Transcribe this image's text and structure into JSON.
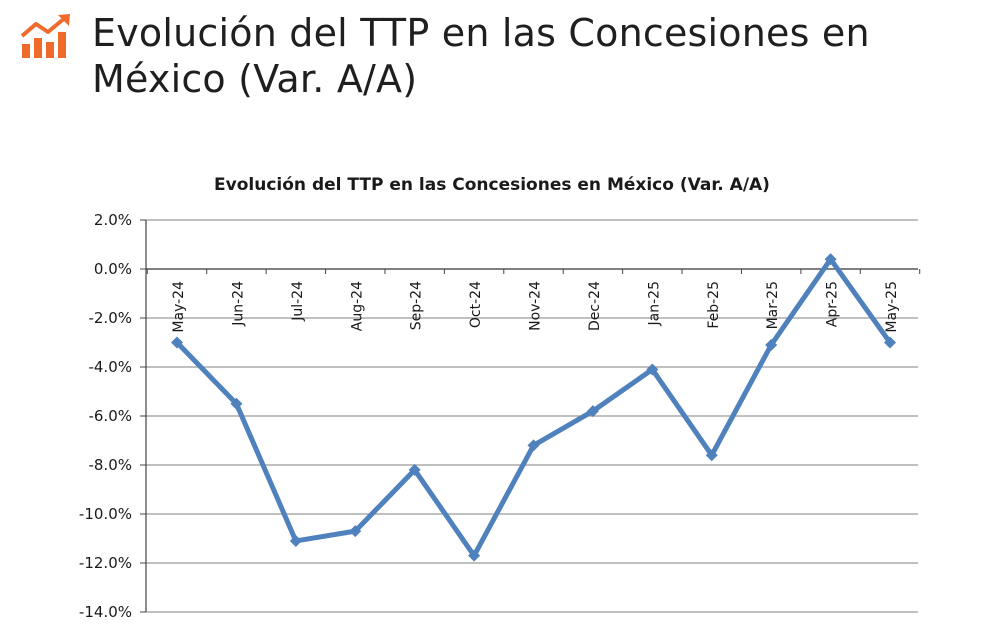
{
  "page": {
    "title": "Evolución del TTP en las Concesiones en México (Var. A/A)"
  },
  "colors": {
    "icon": "#F06A2C",
    "line": "#4F81BD",
    "grid": "#9A9A9A"
  },
  "icon_name": "bar-chart-trend-icon",
  "chart_data": {
    "type": "line",
    "title": "Evolución del TTP  en las Concesiones en México (Var. A/A)",
    "xlabel": "",
    "ylabel": "",
    "categories": [
      "May-24",
      "Jun-24",
      "Jul-24",
      "Aug-24",
      "Sep-24",
      "Oct-24",
      "Nov-24",
      "Dec-24",
      "Jan-25",
      "Feb-25",
      "Mar-25",
      "Apr-25",
      "May-25"
    ],
    "series": [
      {
        "values": [
          -3.0,
          -5.5,
          -11.1,
          -10.7,
          -8.2,
          -11.7,
          -7.2,
          -5.8,
          -4.1,
          -7.6,
          -3.1,
          0.4,
          -3.0
        ]
      }
    ],
    "ylim": [
      -14,
      2
    ],
    "yticks": [
      2,
      0,
      -2,
      -4,
      -6,
      -8,
      -10,
      -12,
      -14
    ],
    "ytick_labels": [
      "2.0%",
      "0.0%",
      "-2.0%",
      "-4.0%",
      "-6.0%",
      "-8.0%",
      "-10.0%",
      "-12.0%",
      "-14.0%"
    ],
    "grid": true,
    "legend": "none",
    "marker": "diamond",
    "category_label_position": "at zero line, rotated vertical"
  }
}
